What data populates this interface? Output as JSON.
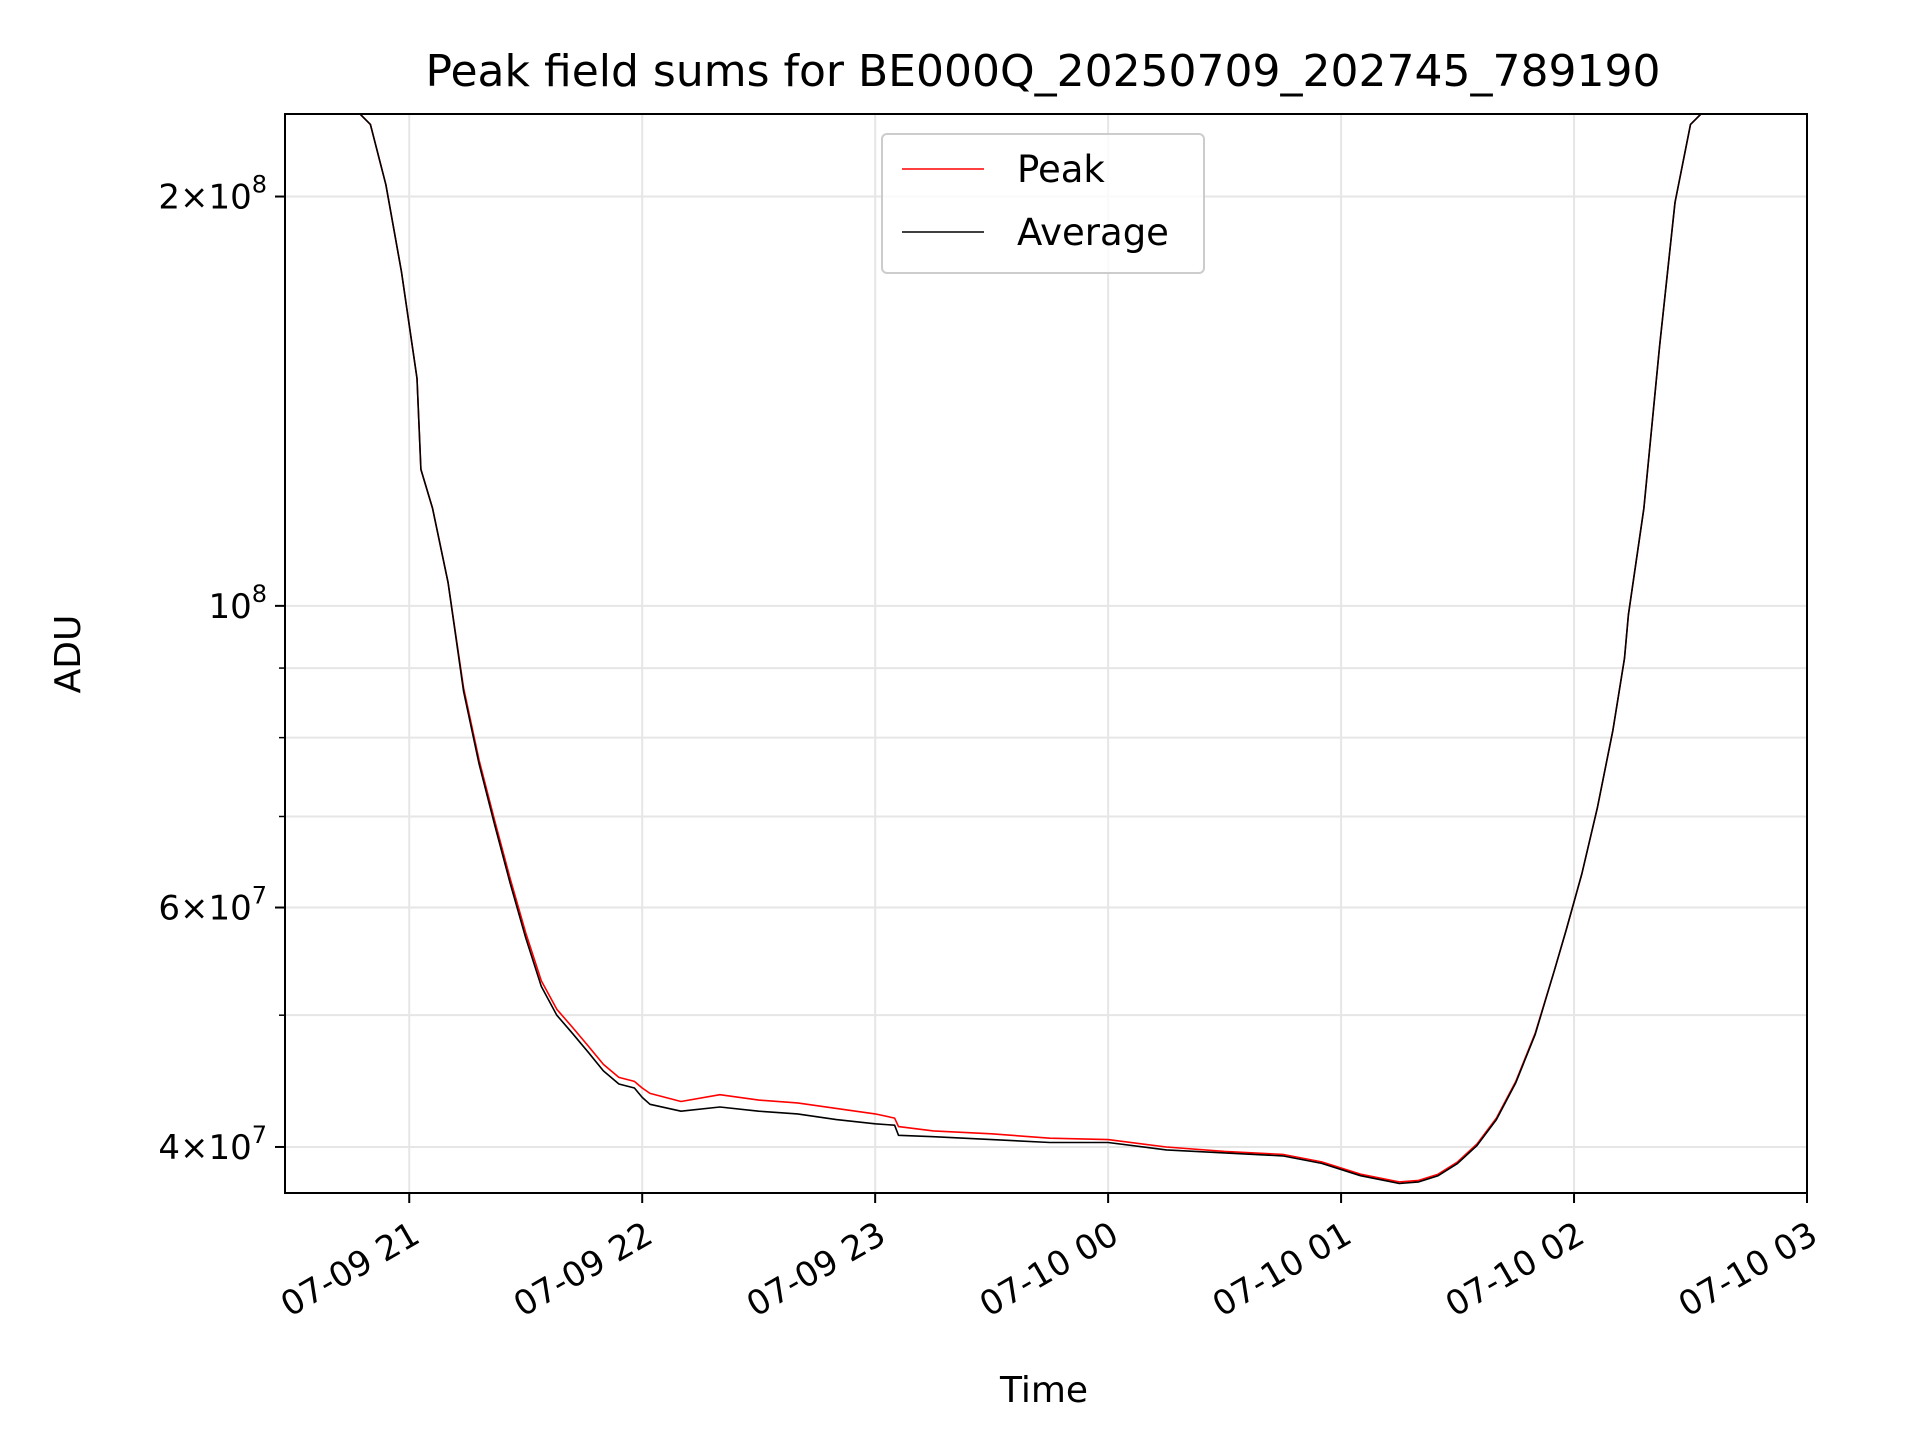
{
  "chart_data": {
    "type": "line",
    "title": "Peak field sums for BE000Q_20250709_202745_789190",
    "xlabel": "Time",
    "ylabel": "ADU",
    "yscale": "log",
    "grid": true,
    "legend_position": "top-center",
    "xlim": [
      "2025-07-09 20:28",
      "2025-07-10 03:00"
    ],
    "ylim": [
      37000000,
      230000000
    ],
    "x_ticks": [
      {
        "value": "2025-07-09 21:00",
        "label": "07-09 21"
      },
      {
        "value": "2025-07-09 22:00",
        "label": "07-09 22"
      },
      {
        "value": "2025-07-09 23:00",
        "label": "07-09 23"
      },
      {
        "value": "2025-07-10 00:00",
        "label": "07-10 00"
      },
      {
        "value": "2025-07-10 01:00",
        "label": "07-10 01"
      },
      {
        "value": "2025-07-10 02:00",
        "label": "07-10 02"
      },
      {
        "value": "2025-07-10 03:00",
        "label": "07-10 03"
      }
    ],
    "y_major_ticks": [
      {
        "value": 40000000,
        "mantissa": "4",
        "base": "10",
        "exponent": "7"
      },
      {
        "value": 60000000,
        "mantissa": "6",
        "base": "10",
        "exponent": "7"
      },
      {
        "value": 100000000,
        "mantissa": "",
        "base": "10",
        "exponent": "8"
      },
      {
        "value": 200000000,
        "mantissa": "2",
        "base": "10",
        "exponent": "8"
      }
    ],
    "y_minor_ticks": [
      50000000,
      70000000,
      80000000,
      90000000
    ],
    "series": [
      {
        "name": "Peak",
        "color": "#ff0000",
        "x": [
          "2025-07-09 20:46",
          "2025-07-09 20:50",
          "2025-07-09 20:54",
          "2025-07-09 20:58",
          "2025-07-09 21:02",
          "2025-07-09 21:03",
          "2025-07-09 21:06",
          "2025-07-09 21:10",
          "2025-07-09 21:14",
          "2025-07-09 21:18",
          "2025-07-09 21:22",
          "2025-07-09 21:26",
          "2025-07-09 21:30",
          "2025-07-09 21:34",
          "2025-07-09 21:38",
          "2025-07-09 21:42",
          "2025-07-09 21:46",
          "2025-07-09 21:50",
          "2025-07-09 21:54",
          "2025-07-09 21:58",
          "2025-07-09 22:00",
          "2025-07-09 22:02",
          "2025-07-09 22:10",
          "2025-07-09 22:20",
          "2025-07-09 22:30",
          "2025-07-09 22:40",
          "2025-07-09 22:50",
          "2025-07-09 23:00",
          "2025-07-09 23:05",
          "2025-07-09 23:06",
          "2025-07-09 23:15",
          "2025-07-09 23:30",
          "2025-07-09 23:45",
          "2025-07-10 00:00",
          "2025-07-10 00:15",
          "2025-07-10 00:30",
          "2025-07-10 00:45",
          "2025-07-10 00:55",
          "2025-07-10 01:05",
          "2025-07-10 01:15",
          "2025-07-10 01:20",
          "2025-07-10 01:25",
          "2025-07-10 01:30",
          "2025-07-10 01:35",
          "2025-07-10 01:40",
          "2025-07-10 01:45",
          "2025-07-10 01:50",
          "2025-07-10 01:55",
          "2025-07-10 01:58",
          "2025-07-10 02:02",
          "2025-07-10 02:06",
          "2025-07-10 02:10",
          "2025-07-10 02:13",
          "2025-07-10 02:14",
          "2025-07-10 02:18",
          "2025-07-10 02:22",
          "2025-07-10 02:26",
          "2025-07-10 02:30",
          "2025-07-10 02:34"
        ],
        "y": [
          232000000,
          226000000,
          204000000,
          176000000,
          147000000,
          126000000,
          118000000,
          104000000,
          87000000,
          77000000,
          69500000,
          63000000,
          57500000,
          53000000,
          50500000,
          49000000,
          47500000,
          46000000,
          45000000,
          44700000,
          44200000,
          43800000,
          43200000,
          43700000,
          43300000,
          43100000,
          42700000,
          42300000,
          42000000,
          41400000,
          41100000,
          40900000,
          40600000,
          40500000,
          40000000,
          39700000,
          39500000,
          39000000,
          38200000,
          37700000,
          37800000,
          38200000,
          39000000,
          40200000,
          42000000,
          44700000,
          48500000,
          54000000,
          57800000,
          63500000,
          71000000,
          81000000,
          91500000,
          98500000,
          118000000,
          155000000,
          198000000,
          226000000,
          232000000
        ]
      },
      {
        "name": "Average",
        "color": "#000000",
        "x": [
          "2025-07-09 20:46",
          "2025-07-09 20:50",
          "2025-07-09 20:54",
          "2025-07-09 20:58",
          "2025-07-09 21:02",
          "2025-07-09 21:03",
          "2025-07-09 21:06",
          "2025-07-09 21:10",
          "2025-07-09 21:14",
          "2025-07-09 21:18",
          "2025-07-09 21:22",
          "2025-07-09 21:26",
          "2025-07-09 21:30",
          "2025-07-09 21:34",
          "2025-07-09 21:38",
          "2025-07-09 21:42",
          "2025-07-09 21:46",
          "2025-07-09 21:50",
          "2025-07-09 21:54",
          "2025-07-09 21:58",
          "2025-07-09 22:00",
          "2025-07-09 22:02",
          "2025-07-09 22:10",
          "2025-07-09 22:20",
          "2025-07-09 22:30",
          "2025-07-09 22:40",
          "2025-07-09 22:50",
          "2025-07-09 23:00",
          "2025-07-09 23:05",
          "2025-07-09 23:06",
          "2025-07-09 23:15",
          "2025-07-09 23:30",
          "2025-07-09 23:45",
          "2025-07-10 00:00",
          "2025-07-10 00:15",
          "2025-07-10 00:30",
          "2025-07-10 00:45",
          "2025-07-10 00:55",
          "2025-07-10 01:05",
          "2025-07-10 01:15",
          "2025-07-10 01:20",
          "2025-07-10 01:25",
          "2025-07-10 01:30",
          "2025-07-10 01:35",
          "2025-07-10 01:40",
          "2025-07-10 01:45",
          "2025-07-10 01:50",
          "2025-07-10 01:55",
          "2025-07-10 01:58",
          "2025-07-10 02:02",
          "2025-07-10 02:06",
          "2025-07-10 02:10",
          "2025-07-10 02:13",
          "2025-07-10 02:14",
          "2025-07-10 02:18",
          "2025-07-10 02:22",
          "2025-07-10 02:26",
          "2025-07-10 02:30",
          "2025-07-10 02:34"
        ],
        "y": [
          232000000,
          226000000,
          204000000,
          176000000,
          147000000,
          126000000,
          118000000,
          104000000,
          86500000,
          76500000,
          69000000,
          62500000,
          57000000,
          52500000,
          50000000,
          48500000,
          47000000,
          45500000,
          44500000,
          44200000,
          43500000,
          43000000,
          42500000,
          42800000,
          42500000,
          42300000,
          41900000,
          41600000,
          41500000,
          40800000,
          40700000,
          40500000,
          40300000,
          40300000,
          39800000,
          39600000,
          39400000,
          38900000,
          38100000,
          37600000,
          37700000,
          38100000,
          38900000,
          40100000,
          41900000,
          44600000,
          48400000,
          54000000,
          57800000,
          63500000,
          71000000,
          81000000,
          91500000,
          98500000,
          118000000,
          155000000,
          198000000,
          226000000,
          232000000
        ]
      }
    ]
  }
}
